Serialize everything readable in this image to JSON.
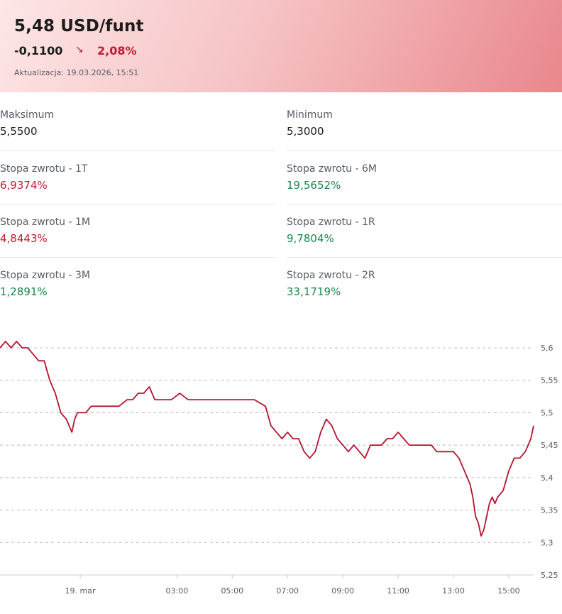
{
  "header": {
    "price": "5,48 USD/funt",
    "change_abs": "-0,1100",
    "change_pct": "2,08%",
    "trend_icon": "↘",
    "updated": "Aktualizacja: 19.03.2026, 15:51"
  },
  "stats": {
    "max_label": "Maksimum",
    "max_value": "5,5500",
    "min_label": "Minimum",
    "min_value": "5,3000",
    "r1t_label": "Stopa zwrotu - 1T",
    "r1t_value": "6,9374%",
    "r6m_label": "Stopa zwrotu - 6M",
    "r6m_value": "19,5652%",
    "r1m_label": "Stopa zwrotu - 1M",
    "r1m_value": "4,8443%",
    "r1r_label": "Stopa zwrotu - 1R",
    "r1r_value": "9,7804%",
    "r3m_label": "Stopa zwrotu - 3M",
    "r3m_value": "1,2891%",
    "r2r_label": "Stopa zwrotu - 2R",
    "r2r_value": "33,1719%"
  },
  "colors": {
    "negative": "#c4182f",
    "positive": "#17864d",
    "line": "#b5132e"
  },
  "chart_data": {
    "type": "line",
    "x_tick_labels": [
      "19. mar",
      "03:00",
      "05:00",
      "07:00",
      "09:00",
      "11:00",
      "13:00",
      "15:00"
    ],
    "x_tick_hours": [
      -0.5,
      3,
      5,
      7,
      9,
      11,
      13,
      15
    ],
    "y_tick_labels": [
      "5,6",
      "5,55",
      "5,5",
      "5,45",
      "5,4",
      "5,35",
      "5,3",
      "5,25"
    ],
    "ylim": [
      5.25,
      5.6
    ],
    "x_range_hours": [
      -3.4,
      15.9
    ],
    "grid": "horizontal dashed",
    "series": [
      {
        "x": [
          -3.4,
          -3.2,
          -3.0,
          -2.8,
          -2.6,
          -2.4,
          -2.2,
          -2.0,
          -1.8,
          -1.6,
          -1.4,
          -1.2,
          -1.0,
          -0.9,
          -0.8,
          -0.7,
          -0.6,
          -0.5,
          -0.3,
          -0.1,
          0.1,
          0.3,
          0.6,
          0.9,
          1.2,
          1.4,
          1.6,
          1.8,
          2.0,
          2.2,
          2.5,
          2.8,
          3.1,
          3.4,
          3.7,
          4.0,
          4.3,
          4.6,
          5.0,
          5.4,
          5.8,
          6.2,
          6.4,
          6.6,
          6.8,
          7.0,
          7.2,
          7.4,
          7.5,
          7.6,
          7.8,
          8.0,
          8.2,
          8.4,
          8.6,
          8.8,
          9.0,
          9.2,
          9.4,
          9.6,
          9.8,
          10.0,
          10.2,
          10.4,
          10.6,
          10.8,
          11.0,
          11.2,
          11.4,
          11.6,
          11.8,
          12.0,
          12.2,
          12.4,
          12.6,
          12.8,
          13.0,
          13.2,
          13.4,
          13.6,
          13.7,
          13.8,
          13.9,
          14.0,
          14.1,
          14.2,
          14.3,
          14.4,
          14.5,
          14.6,
          14.8,
          15.0,
          15.2,
          15.4,
          15.6,
          15.8,
          15.9
        ],
        "y": [
          5.6,
          5.61,
          5.6,
          5.61,
          5.6,
          5.6,
          5.59,
          5.58,
          5.58,
          5.55,
          5.53,
          5.5,
          5.49,
          5.48,
          5.47,
          5.49,
          5.5,
          5.5,
          5.5,
          5.51,
          5.51,
          5.51,
          5.51,
          5.51,
          5.52,
          5.52,
          5.53,
          5.53,
          5.54,
          5.52,
          5.52,
          5.52,
          5.53,
          5.52,
          5.52,
          5.52,
          5.52,
          5.52,
          5.52,
          5.52,
          5.52,
          5.51,
          5.48,
          5.47,
          5.46,
          5.47,
          5.46,
          5.46,
          5.45,
          5.44,
          5.43,
          5.44,
          5.47,
          5.49,
          5.48,
          5.46,
          5.45,
          5.44,
          5.45,
          5.44,
          5.43,
          5.45,
          5.45,
          5.45,
          5.46,
          5.46,
          5.47,
          5.46,
          5.45,
          5.45,
          5.45,
          5.45,
          5.45,
          5.44,
          5.44,
          5.44,
          5.44,
          5.43,
          5.41,
          5.39,
          5.37,
          5.34,
          5.33,
          5.31,
          5.32,
          5.34,
          5.36,
          5.37,
          5.36,
          5.37,
          5.38,
          5.41,
          5.43,
          5.43,
          5.44,
          5.46,
          5.48
        ]
      }
    ]
  }
}
